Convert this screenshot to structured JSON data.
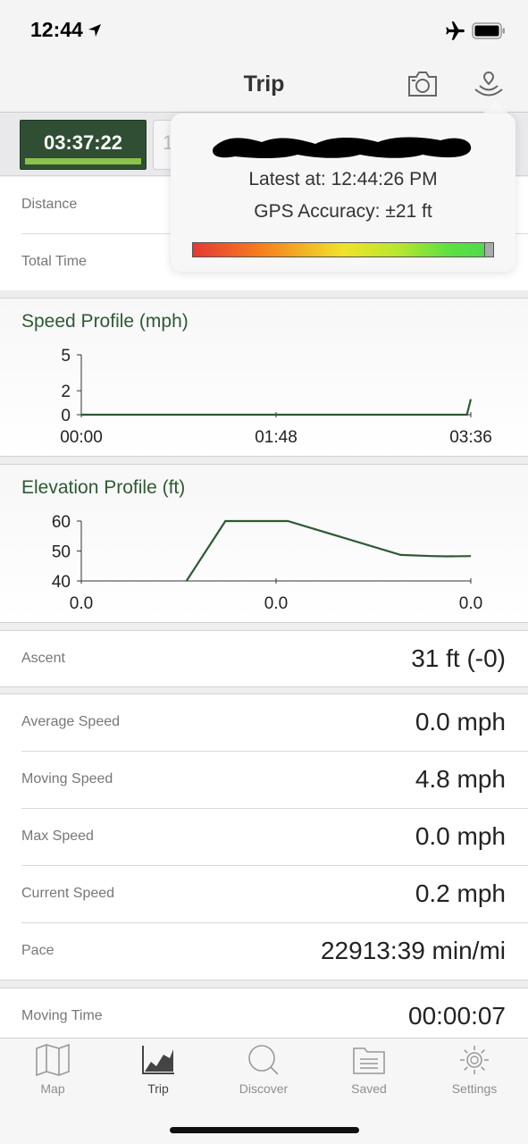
{
  "status": {
    "time": "12:44"
  },
  "nav": {
    "title": "Trip"
  },
  "timer": {
    "elapsed": "03:37:22",
    "second_partial": "1"
  },
  "summary": [
    {
      "label": "Distance"
    },
    {
      "label": "Total Time"
    }
  ],
  "gps_popover": {
    "latest": "Latest at: 12:44:26 PM",
    "accuracy": "GPS Accuracy: ±21 ft"
  },
  "speed_profile": {
    "title": "Speed Profile (mph)",
    "chart_data": {
      "type": "line",
      "title": "Speed Profile (mph)",
      "x_ticks": [
        "00:00",
        "01:48",
        "03:36"
      ],
      "y_ticks": [
        "5",
        "2",
        "0"
      ],
      "ylim": [
        0,
        5
      ],
      "series": [
        {
          "x": [
            0,
            0.99,
            1.0
          ],
          "y": [
            0,
            0,
            1.3
          ]
        }
      ]
    }
  },
  "elevation_profile": {
    "title": "Elevation Profile (ft)",
    "chart_data": {
      "type": "line",
      "title": "Elevation Profile (ft)",
      "x_ticks": [
        "0.0",
        "0.0",
        "0.0"
      ],
      "y_ticks": [
        "60",
        "50",
        "40"
      ],
      "ylim": [
        40,
        60
      ],
      "series": [
        {
          "x": [
            0.27,
            0.37,
            0.53,
            0.82,
            0.9,
            0.94,
            1.0
          ],
          "y": [
            40,
            60,
            60,
            48.7,
            48.3,
            48.2,
            48.3
          ]
        }
      ]
    }
  },
  "ascent": {
    "label": "Ascent",
    "value": "31 ft (-0)"
  },
  "speeds": [
    {
      "label": "Average Speed",
      "value": "0.0 mph"
    },
    {
      "label": "Moving Speed",
      "value": "4.8 mph"
    },
    {
      "label": "Max Speed",
      "value": "0.0 mph"
    },
    {
      "label": "Current Speed",
      "value": "0.2 mph"
    },
    {
      "label": "Pace",
      "value": "22913:39 min/mi"
    }
  ],
  "moving_time": {
    "label": "Moving Time",
    "value": "00:00:07"
  },
  "tabs": [
    {
      "label": "Map",
      "icon": "map-icon"
    },
    {
      "label": "Trip",
      "icon": "chart-icon"
    },
    {
      "label": "Discover",
      "icon": "search-icon"
    },
    {
      "label": "Saved",
      "icon": "folder-icon"
    },
    {
      "label": "Settings",
      "icon": "gear-icon"
    }
  ],
  "colors": {
    "accent": "#2f4e33",
    "title_green": "#2d5a32",
    "progress": "#8bc34a"
  }
}
